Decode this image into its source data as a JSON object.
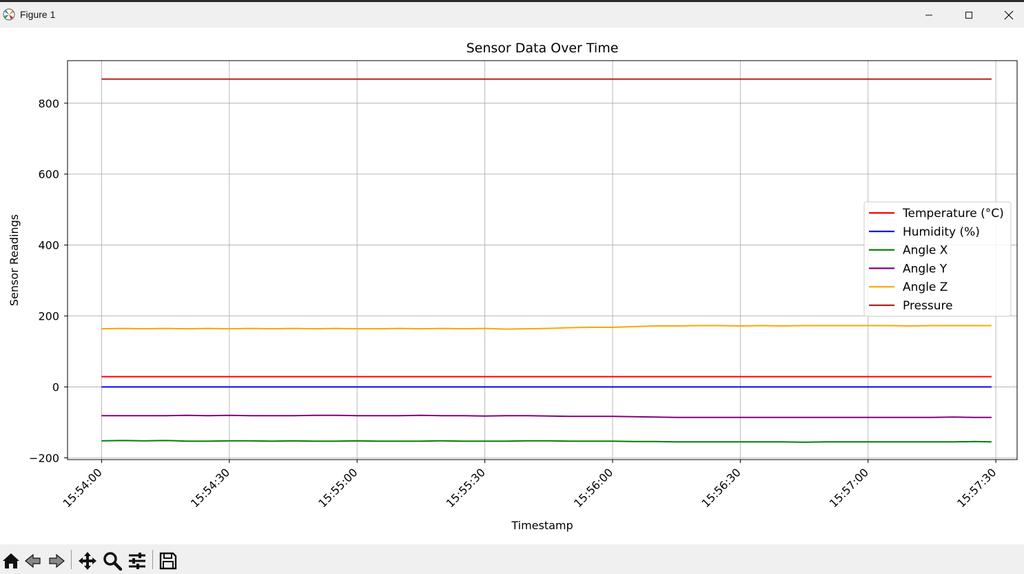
{
  "window": {
    "title": "Figure 1"
  },
  "toolbar": {
    "items": [
      {
        "icon": "home-icon",
        "tooltip": "Home"
      },
      {
        "icon": "back-icon",
        "tooltip": "Back"
      },
      {
        "icon": "forward-icon",
        "tooltip": "Forward"
      },
      {
        "icon": "pan-icon",
        "tooltip": "Pan"
      },
      {
        "icon": "zoom-icon",
        "tooltip": "Zoom"
      },
      {
        "icon": "configure-subplots-icon",
        "tooltip": "Configure subplots"
      },
      {
        "icon": "save-icon",
        "tooltip": "Save"
      }
    ]
  },
  "chart_data": {
    "type": "line",
    "title": "Sensor Data Over Time",
    "xlabel": "Timestamp",
    "ylabel": "Sensor Readings",
    "ylim": [
      -205,
      920
    ],
    "xlim": [
      "15:53:52",
      "15:57:35"
    ],
    "xticks": [
      "15:54:00",
      "15:54:30",
      "15:55:00",
      "15:55:30",
      "15:56:00",
      "15:56:30",
      "15:57:00",
      "15:57:30"
    ],
    "yticks": [
      -200,
      0,
      200,
      400,
      600,
      800
    ],
    "grid": true,
    "legend_position": "center-right",
    "x": [
      "15:54:00",
      "15:54:05",
      "15:54:10",
      "15:54:15",
      "15:54:20",
      "15:54:25",
      "15:54:30",
      "15:54:35",
      "15:54:40",
      "15:54:45",
      "15:54:50",
      "15:54:55",
      "15:55:00",
      "15:55:05",
      "15:55:10",
      "15:55:15",
      "15:55:20",
      "15:55:25",
      "15:55:30",
      "15:55:35",
      "15:55:40",
      "15:55:45",
      "15:55:50",
      "15:55:55",
      "15:56:00",
      "15:56:05",
      "15:56:10",
      "15:56:15",
      "15:56:20",
      "15:56:25",
      "15:56:30",
      "15:56:35",
      "15:56:40",
      "15:56:45",
      "15:56:50",
      "15:56:55",
      "15:57:00",
      "15:57:05",
      "15:57:10",
      "15:57:15",
      "15:57:20",
      "15:57:25",
      "15:57:29"
    ],
    "series": [
      {
        "name": "Temperature (°C)",
        "color": "#ff0000",
        "values": [
          29,
          29,
          29,
          29,
          29,
          29,
          29,
          29,
          29,
          29,
          29,
          29,
          29,
          29,
          29,
          29,
          29,
          29,
          29,
          29,
          29,
          29,
          29,
          29,
          29,
          29,
          29,
          29,
          29,
          29,
          29,
          29,
          29,
          29,
          29,
          29,
          29,
          29,
          29,
          29,
          29,
          29,
          29
        ]
      },
      {
        "name": "Humidity (%)",
        "color": "#0000ff",
        "values": [
          0,
          0,
          0,
          0,
          0,
          0,
          0,
          0,
          0,
          0,
          0,
          0,
          0,
          0,
          0,
          0,
          0,
          0,
          0,
          0,
          0,
          0,
          0,
          0,
          0,
          0,
          0,
          0,
          0,
          0,
          0,
          0,
          0,
          0,
          0,
          0,
          0,
          0,
          0,
          0,
          0,
          0,
          0
        ]
      },
      {
        "name": "Angle X",
        "color": "#008000",
        "values": [
          -152,
          -151,
          -152,
          -151,
          -153,
          -153,
          -152,
          -152,
          -153,
          -152,
          -153,
          -153,
          -152,
          -153,
          -153,
          -153,
          -152,
          -153,
          -153,
          -153,
          -152,
          -152,
          -153,
          -153,
          -153,
          -154,
          -154,
          -155,
          -155,
          -155,
          -155,
          -155,
          -155,
          -156,
          -155,
          -155,
          -155,
          -155,
          -155,
          -155,
          -155,
          -154,
          -155
        ]
      },
      {
        "name": "Angle Y",
        "color": "#800080",
        "values": [
          -81,
          -81,
          -81,
          -81,
          -80,
          -81,
          -80,
          -81,
          -81,
          -81,
          -80,
          -80,
          -81,
          -81,
          -81,
          -80,
          -81,
          -81,
          -82,
          -81,
          -81,
          -82,
          -83,
          -83,
          -83,
          -84,
          -85,
          -86,
          -86,
          -86,
          -86,
          -86,
          -86,
          -86,
          -86,
          -86,
          -86,
          -86,
          -86,
          -86,
          -85,
          -86,
          -86
        ]
      },
      {
        "name": "Angle Z",
        "color": "#ffa500",
        "values": [
          164,
          165,
          164,
          165,
          164,
          165,
          164,
          165,
          164,
          165,
          164,
          165,
          164,
          164,
          165,
          164,
          165,
          164,
          165,
          163,
          164,
          165,
          167,
          168,
          168,
          170,
          172,
          172,
          173,
          173,
          172,
          173,
          172,
          173,
          173,
          173,
          173,
          173,
          172,
          173,
          173,
          173,
          173
        ]
      },
      {
        "name": "Pressure",
        "color": "#b22222",
        "values": [
          868,
          868,
          868,
          868,
          868,
          868,
          868,
          868,
          868,
          868,
          868,
          868,
          868,
          868,
          868,
          868,
          868,
          868,
          868,
          868,
          868,
          868,
          868,
          868,
          868,
          868,
          868,
          868,
          868,
          868,
          868,
          868,
          868,
          868,
          868,
          868,
          868,
          868,
          868,
          868,
          868,
          868,
          868
        ]
      }
    ]
  }
}
